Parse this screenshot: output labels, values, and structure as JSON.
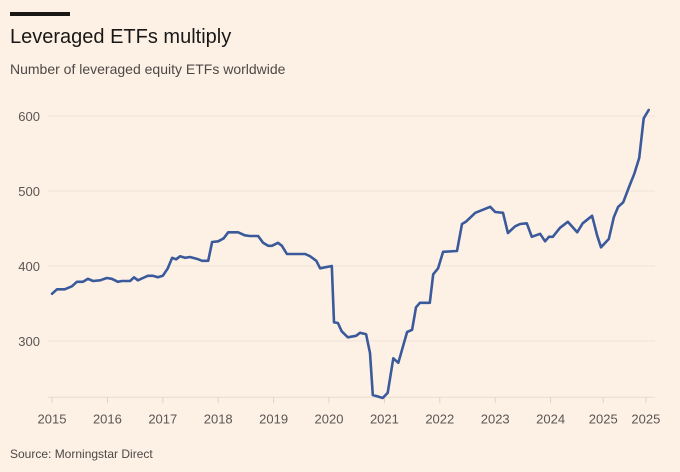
{
  "title": "Leveraged ETFs multiply",
  "subtitle": "Number of leveraged equity ETFs worldwide",
  "source": "Source: Morningstar Direct",
  "chart_data": {
    "type": "line",
    "title": "Leveraged ETFs multiply",
    "subtitle": "Number of leveraged equity ETFs worldwide",
    "xlabel": "",
    "ylabel": "",
    "xlim": [
      2015,
      2025.8
    ],
    "ylim": [
      225,
      620
    ],
    "grid": "horizontal",
    "line_color": "#3a5a9b",
    "y_ticks": [
      300,
      400,
      500,
      600
    ],
    "x_ticks": [
      {
        "value": 2015,
        "label": "2015"
      },
      {
        "value": 2016,
        "label": "2016"
      },
      {
        "value": 2017,
        "label": "2017"
      },
      {
        "value": 2018,
        "label": "2018"
      },
      {
        "value": 2019,
        "label": "2019"
      },
      {
        "value": 2020,
        "label": "2020"
      },
      {
        "value": 2021,
        "label": "2021"
      },
      {
        "value": 2022,
        "label": "2022"
      },
      {
        "value": 2023,
        "label": "2023"
      },
      {
        "value": 2024,
        "label": "2024"
      },
      {
        "value": 2024.95,
        "label": "2025"
      },
      {
        "value": 2025.72,
        "label": "2025"
      }
    ],
    "series": [
      {
        "points": [
          [
            2015.0,
            363
          ],
          [
            2015.09,
            369
          ],
          [
            2015.23,
            369
          ],
          [
            2015.36,
            373
          ],
          [
            2015.45,
            379
          ],
          [
            2015.56,
            379
          ],
          [
            2015.65,
            383
          ],
          [
            2015.74,
            380
          ],
          [
            2015.87,
            381
          ],
          [
            2015.99,
            384
          ],
          [
            2016.08,
            383
          ],
          [
            2016.19,
            379
          ],
          [
            2016.26,
            380
          ],
          [
            2016.41,
            380
          ],
          [
            2016.48,
            385
          ],
          [
            2016.55,
            381
          ],
          [
            2016.64,
            384
          ],
          [
            2016.73,
            387
          ],
          [
            2016.82,
            387
          ],
          [
            2016.91,
            385
          ],
          [
            2017.0,
            387
          ],
          [
            2017.09,
            397
          ],
          [
            2017.17,
            411
          ],
          [
            2017.24,
            409
          ],
          [
            2017.31,
            413
          ],
          [
            2017.4,
            411
          ],
          [
            2017.49,
            412
          ],
          [
            2017.64,
            409
          ],
          [
            2017.71,
            407
          ],
          [
            2017.82,
            407
          ],
          [
            2017.89,
            432
          ],
          [
            2018.0,
            433
          ],
          [
            2018.1,
            437
          ],
          [
            2018.18,
            445
          ],
          [
            2018.36,
            445
          ],
          [
            2018.48,
            441
          ],
          [
            2018.57,
            440
          ],
          [
            2018.72,
            440
          ],
          [
            2018.81,
            431
          ],
          [
            2018.9,
            427
          ],
          [
            2018.97,
            427
          ],
          [
            2019.08,
            431
          ],
          [
            2019.15,
            427
          ],
          [
            2019.24,
            416
          ],
          [
            2019.57,
            416
          ],
          [
            2019.66,
            413
          ],
          [
            2019.77,
            407
          ],
          [
            2019.84,
            397
          ],
          [
            2020.05,
            400
          ],
          [
            2020.09,
            325
          ],
          [
            2020.16,
            324
          ],
          [
            2020.23,
            313
          ],
          [
            2020.34,
            305
          ],
          [
            2020.49,
            307
          ],
          [
            2020.56,
            311
          ],
          [
            2020.67,
            309
          ],
          [
            2020.74,
            284
          ],
          [
            2020.79,
            228
          ],
          [
            2020.97,
            224
          ],
          [
            2021.06,
            231
          ],
          [
            2021.16,
            277
          ],
          [
            2021.25,
            271
          ],
          [
            2021.41,
            312
          ],
          [
            2021.5,
            315
          ],
          [
            2021.57,
            345
          ],
          [
            2021.64,
            351
          ],
          [
            2021.82,
            351
          ],
          [
            2021.88,
            389
          ],
          [
            2021.97,
            397
          ],
          [
            2022.06,
            419
          ],
          [
            2022.31,
            420
          ],
          [
            2022.4,
            456
          ],
          [
            2022.47,
            459
          ],
          [
            2022.64,
            471
          ],
          [
            2022.91,
            479
          ],
          [
            2023.0,
            472
          ],
          [
            2023.14,
            471
          ],
          [
            2023.23,
            444
          ],
          [
            2023.36,
            453
          ],
          [
            2023.45,
            456
          ],
          [
            2023.57,
            457
          ],
          [
            2023.66,
            439
          ],
          [
            2023.81,
            443
          ],
          [
            2023.9,
            433
          ],
          [
            2023.97,
            439
          ],
          [
            2024.04,
            439
          ],
          [
            2024.17,
            451
          ],
          [
            2024.31,
            459
          ],
          [
            2024.48,
            445
          ],
          [
            2024.58,
            457
          ],
          [
            2024.75,
            467
          ],
          [
            2024.84,
            441
          ],
          [
            2024.91,
            425
          ],
          [
            2025.05,
            436
          ],
          [
            2025.14,
            465
          ],
          [
            2025.22,
            479
          ],
          [
            2025.31,
            485
          ],
          [
            2025.43,
            508
          ],
          [
            2025.51,
            523
          ],
          [
            2025.6,
            544
          ],
          [
            2025.68,
            597
          ],
          [
            2025.77,
            608
          ]
        ]
      }
    ]
  }
}
